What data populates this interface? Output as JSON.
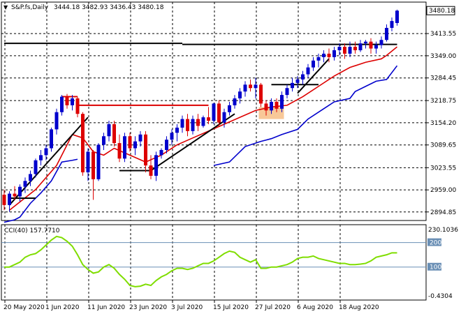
{
  "header": {
    "symbol": "S&P.fs,Daily",
    "ohlc": "3444.18 3482.93 3436.43 3480.18"
  },
  "cci": {
    "label": "CCI(40) 157.7710",
    "max_label": "230.1036",
    "min_label": "-0.4304",
    "levels": [
      200,
      100
    ],
    "level_labels": [
      "200",
      "100"
    ],
    "range": [
      -0.4304,
      230.1036
    ]
  },
  "colors": {
    "bull": "#0000cc",
    "bear": "#dd0000",
    "ma_fast": "#dd0000",
    "ma_slow": "#0000cc",
    "cci_line": "#7fdd00",
    "trend": "#000000",
    "resistance": "#dd0000",
    "highlight": "#f8c898",
    "grid": "#000000"
  },
  "chart_data": {
    "type": "candlestick",
    "title": "S&P.fs,Daily",
    "last_price": "3480.18",
    "ylim": [
      2870,
      3505
    ],
    "y_ticks": [
      3480.18,
      3413.55,
      3349.0,
      3284.45,
      3218.75,
      3154.2,
      3089.65,
      3023.55,
      2959.0,
      2894.85
    ],
    "y_tick_labels": [
      "3480.18",
      "3413.55",
      "3349.00",
      "3284.45",
      "3218.75",
      "3154.20",
      "3089.65",
      "3023.55",
      "2959.00",
      "2894.85"
    ],
    "x_tick_labels": [
      "20 May 2020",
      "1 Jun 2020",
      "11 Jun 2020",
      "23 Jun 2020",
      "3 Jul 2020",
      "15 Jul 2020",
      "27 Jul 2020",
      "6 Aug 2020",
      "18 Aug 2020"
    ],
    "x_tick_index": [
      0,
      8,
      16,
      24,
      32,
      40,
      48,
      56,
      64
    ],
    "candles": [
      [
        2945,
        2960,
        2900,
        2915
      ],
      [
        2915,
        2955,
        2895,
        2948
      ],
      [
        2948,
        2970,
        2930,
        2940
      ],
      [
        2940,
        2975,
        2925,
        2968
      ],
      [
        2968,
        2995,
        2950,
        2985
      ],
      [
        2985,
        3015,
        2970,
        3005
      ],
      [
        3005,
        3050,
        2995,
        3045
      ],
      [
        3045,
        3075,
        3030,
        3060
      ],
      [
        3060,
        3090,
        3045,
        3080
      ],
      [
        3080,
        3140,
        3070,
        3135
      ],
      [
        3135,
        3195,
        3120,
        3185
      ],
      [
        3185,
        3235,
        3175,
        3230
      ],
      [
        3230,
        3238,
        3195,
        3205
      ],
      [
        3205,
        3235,
        3190,
        3225
      ],
      [
        3225,
        3230,
        3170,
        3180
      ],
      [
        3180,
        3185,
        3000,
        3010
      ],
      [
        3010,
        3080,
        2985,
        3070
      ],
      [
        3070,
        3075,
        2930,
        2990
      ],
      [
        2990,
        3095,
        2985,
        3090
      ],
      [
        3090,
        3125,
        3075,
        3115
      ],
      [
        3115,
        3160,
        3100,
        3150
      ],
      [
        3150,
        3160,
        3085,
        3095
      ],
      [
        3095,
        3120,
        3040,
        3050
      ],
      [
        3050,
        3125,
        3040,
        3115
      ],
      [
        3115,
        3125,
        3070,
        3080
      ],
      [
        3080,
        3115,
        3060,
        3100
      ],
      [
        3100,
        3130,
        3085,
        3120
      ],
      [
        3120,
        3130,
        3010,
        3030
      ],
      [
        3030,
        3060,
        2990,
        3000
      ],
      [
        3000,
        3070,
        2985,
        3060
      ],
      [
        3060,
        3080,
        3050,
        3075
      ],
      [
        3075,
        3115,
        3065,
        3105
      ],
      [
        3105,
        3135,
        3090,
        3125
      ],
      [
        3125,
        3150,
        3100,
        3140
      ],
      [
        3140,
        3175,
        3125,
        3165
      ],
      [
        3165,
        3180,
        3115,
        3130
      ],
      [
        3130,
        3175,
        3120,
        3165
      ],
      [
        3165,
        3180,
        3130,
        3145
      ],
      [
        3145,
        3175,
        3140,
        3170
      ],
      [
        3170,
        3200,
        3150,
        3160
      ],
      [
        3160,
        3212,
        3150,
        3210
      ],
      [
        3210,
        3220,
        3145,
        3155
      ],
      [
        3155,
        3195,
        3140,
        3185
      ],
      [
        3185,
        3215,
        3175,
        3205
      ],
      [
        3205,
        3235,
        3195,
        3225
      ],
      [
        3225,
        3255,
        3210,
        3245
      ],
      [
        3245,
        3275,
        3230,
        3265
      ],
      [
        3265,
        3280,
        3245,
        3255
      ],
      [
        3255,
        3285,
        3225,
        3265
      ],
      [
        3265,
        3270,
        3200,
        3210
      ],
      [
        3210,
        3220,
        3175,
        3190
      ],
      [
        3190,
        3225,
        3180,
        3215
      ],
      [
        3215,
        3225,
        3185,
        3195
      ],
      [
        3195,
        3245,
        3185,
        3235
      ],
      [
        3235,
        3265,
        3225,
        3255
      ],
      [
        3255,
        3285,
        3245,
        3270
      ],
      [
        3270,
        3290,
        3255,
        3280
      ],
      [
        3280,
        3305,
        3265,
        3295
      ],
      [
        3295,
        3325,
        3285,
        3315
      ],
      [
        3315,
        3345,
        3305,
        3335
      ],
      [
        3335,
        3355,
        3315,
        3345
      ],
      [
        3345,
        3365,
        3330,
        3355
      ],
      [
        3355,
        3370,
        3330,
        3345
      ],
      [
        3345,
        3375,
        3335,
        3365
      ],
      [
        3365,
        3385,
        3350,
        3375
      ],
      [
        3375,
        3385,
        3340,
        3355
      ],
      [
        3355,
        3390,
        3345,
        3375
      ],
      [
        3375,
        3390,
        3355,
        3365
      ],
      [
        3365,
        3395,
        3360,
        3385
      ],
      [
        3385,
        3395,
        3370,
        3390
      ],
      [
        3390,
        3400,
        3355,
        3370
      ],
      [
        3370,
        3390,
        3355,
        3380
      ],
      [
        3380,
        3405,
        3370,
        3395
      ],
      [
        3395,
        3440,
        3390,
        3430
      ],
      [
        3430,
        3460,
        3420,
        3450
      ],
      [
        3444.18,
        3482.93,
        3436.43,
        3480.18
      ]
    ],
    "ma_fast": [
      [
        1,
        2900
      ],
      [
        6,
        2960
      ],
      [
        10,
        3030
      ],
      [
        13,
        3120
      ],
      [
        15,
        3110
      ],
      [
        17,
        3070
      ],
      [
        19,
        3060
      ],
      [
        21,
        3080
      ],
      [
        24,
        3060
      ],
      [
        27,
        3040
      ],
      [
        30,
        3060
      ],
      [
        33,
        3090
      ],
      [
        36,
        3110
      ],
      [
        39,
        3130
      ],
      [
        42,
        3150
      ],
      [
        45,
        3170
      ],
      [
        48,
        3190
      ],
      [
        51,
        3200
      ],
      [
        54,
        3205
      ],
      [
        57,
        3230
      ],
      [
        60,
        3260
      ],
      [
        63,
        3290
      ],
      [
        66,
        3315
      ],
      [
        69,
        3330
      ],
      [
        72,
        3340
      ],
      [
        73,
        3350
      ],
      [
        75,
        3375
      ]
    ],
    "ma_slow": [
      [
        0,
        2865
      ],
      [
        2,
        2872
      ],
      [
        3,
        2880
      ],
      [
        5,
        2920
      ],
      [
        7,
        2950
      ],
      [
        9,
        2985
      ],
      [
        11,
        3040
      ],
      [
        13,
        3045
      ],
      [
        14,
        3048
      ],
      null,
      [
        40,
        3030
      ],
      [
        43,
        3040
      ],
      [
        46,
        3085
      ],
      [
        49,
        3100
      ],
      [
        51,
        3108
      ],
      [
        53,
        3120
      ],
      [
        56,
        3135
      ],
      [
        58,
        3165
      ],
      [
        61,
        3195
      ],
      [
        63,
        3215
      ],
      [
        66,
        3225
      ],
      [
        67,
        3245
      ],
      [
        69,
        3260
      ],
      [
        71,
        3275
      ],
      [
        73,
        3280
      ],
      [
        75,
        3320
      ]
    ],
    "support_lines": [
      [
        [
          1,
          2935
        ],
        [
          6,
          2935
        ]
      ],
      [
        [
          22,
          3015
        ],
        [
          28,
          3015
        ]
      ],
      [
        [
          0,
          3385
        ],
        [
          34,
          3385
        ]
      ],
      [
        [
          34,
          3382
        ],
        [
          75,
          3382
        ]
      ],
      [
        [
          51,
          3265
        ],
        [
          60,
          3265
        ]
      ]
    ],
    "resistance_lines": [
      [
        [
          14,
          3205
        ],
        [
          39,
          3205
        ]
      ],
      [
        [
          11,
          3230
        ],
        [
          14,
          3230
        ]
      ]
    ],
    "trend_lines": [
      [
        [
          1,
          2915
        ],
        [
          16,
          3170
        ]
      ],
      [
        [
          28,
          3015
        ],
        [
          44,
          3180
        ]
      ],
      [
        [
          56,
          3240
        ],
        [
          62,
          3340
        ]
      ]
    ],
    "highlight_zone": {
      "x0": 49,
      "x1": 53,
      "y0": 3165,
      "y1": 3200
    },
    "cci_values": [
      [
        0,
        100
      ],
      [
        1,
        100
      ],
      [
        2,
        110
      ],
      [
        3,
        120
      ],
      [
        4,
        140
      ],
      [
        5,
        150
      ],
      [
        6,
        155
      ],
      [
        7,
        170
      ],
      [
        8,
        190
      ],
      [
        9,
        210
      ],
      [
        10,
        225
      ],
      [
        11,
        220
      ],
      [
        12,
        205
      ],
      [
        13,
        185
      ],
      [
        14,
        150
      ],
      [
        15,
        110
      ],
      [
        16,
        90
      ],
      [
        17,
        75
      ],
      [
        18,
        80
      ],
      [
        19,
        100
      ],
      [
        20,
        110
      ],
      [
        21,
        95
      ],
      [
        22,
        70
      ],
      [
        23,
        50
      ],
      [
        24,
        25
      ],
      [
        25,
        20
      ],
      [
        26,
        22
      ],
      [
        27,
        30
      ],
      [
        28,
        25
      ],
      [
        29,
        45
      ],
      [
        30,
        60
      ],
      [
        31,
        70
      ],
      [
        32,
        85
      ],
      [
        33,
        95
      ],
      [
        34,
        95
      ],
      [
        35,
        90
      ],
      [
        36,
        95
      ],
      [
        37,
        105
      ],
      [
        38,
        115
      ],
      [
        39,
        115
      ],
      [
        40,
        125
      ],
      [
        41,
        140
      ],
      [
        42,
        155
      ],
      [
        43,
        165
      ],
      [
        44,
        160
      ],
      [
        45,
        140
      ],
      [
        46,
        130
      ],
      [
        47,
        120
      ],
      [
        48,
        130
      ],
      [
        49,
        95
      ],
      [
        50,
        95
      ],
      [
        51,
        100
      ],
      [
        52,
        100
      ],
      [
        53,
        105
      ],
      [
        54,
        110
      ],
      [
        55,
        120
      ],
      [
        56,
        135
      ],
      [
        57,
        140
      ],
      [
        58,
        140
      ],
      [
        59,
        145
      ],
      [
        60,
        135
      ],
      [
        61,
        130
      ],
      [
        62,
        125
      ],
      [
        63,
        120
      ],
      [
        64,
        115
      ],
      [
        65,
        115
      ],
      [
        66,
        110
      ],
      [
        67,
        110
      ],
      [
        68,
        112
      ],
      [
        69,
        115
      ],
      [
        70,
        125
      ],
      [
        71,
        140
      ],
      [
        72,
        145
      ],
      [
        73,
        150
      ],
      [
        74,
        158
      ],
      [
        75,
        157.771
      ]
    ],
    "grid": true
  }
}
